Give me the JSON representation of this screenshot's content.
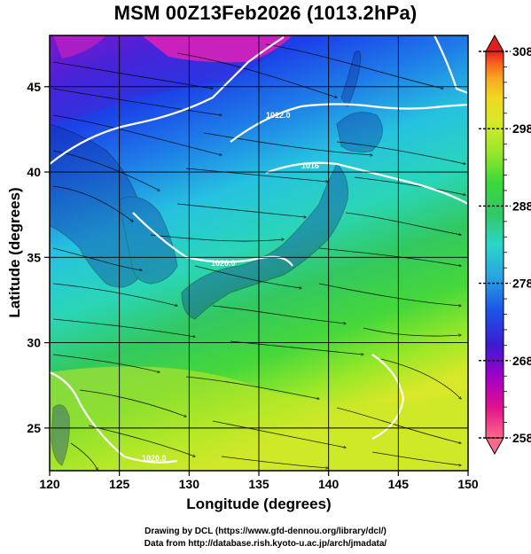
{
  "title": "MSM 00Z13Feb2026 (1013.2hPa)",
  "map": {
    "lon_range": [
      120,
      150
    ],
    "lat_range": [
      22.5,
      48
    ],
    "x_ticks": [
      "120",
      "125",
      "130",
      "135",
      "140",
      "145",
      "150"
    ],
    "y_ticks": [
      "25",
      "30",
      "35",
      "40",
      "45"
    ],
    "xlabel": "Longitude (degrees)",
    "ylabel": "Latitude  (degrees)",
    "field": "temperature (K) shaded, streamlines, sea level pressure contours",
    "contours": [
      {
        "label": "1012.0"
      },
      {
        "label": "1016"
      },
      {
        "label": "1020.0"
      },
      {
        "label": "1020.0"
      }
    ]
  },
  "colorbar": {
    "min": 258,
    "max": 308,
    "labels": [
      "308",
      "298",
      "288",
      "278",
      "268",
      "258"
    ],
    "colors": [
      "#ff6a8a",
      "#e0108c",
      "#a000c8",
      "#3c1ad2",
      "#1c55e8",
      "#2aa6e0",
      "#2ad6c8",
      "#32c864",
      "#3ad83a",
      "#9ae828",
      "#d8e828",
      "#f0d820",
      "#f8a820",
      "#f86020",
      "#e02020"
    ]
  },
  "credits": {
    "line1": "Drawing by DCL (https://www.gfd-dennou.org/library/dcl/)",
    "line2": "Data from http://database.rish.kyoto-u.ac.jp/arch/jmadata/"
  }
}
